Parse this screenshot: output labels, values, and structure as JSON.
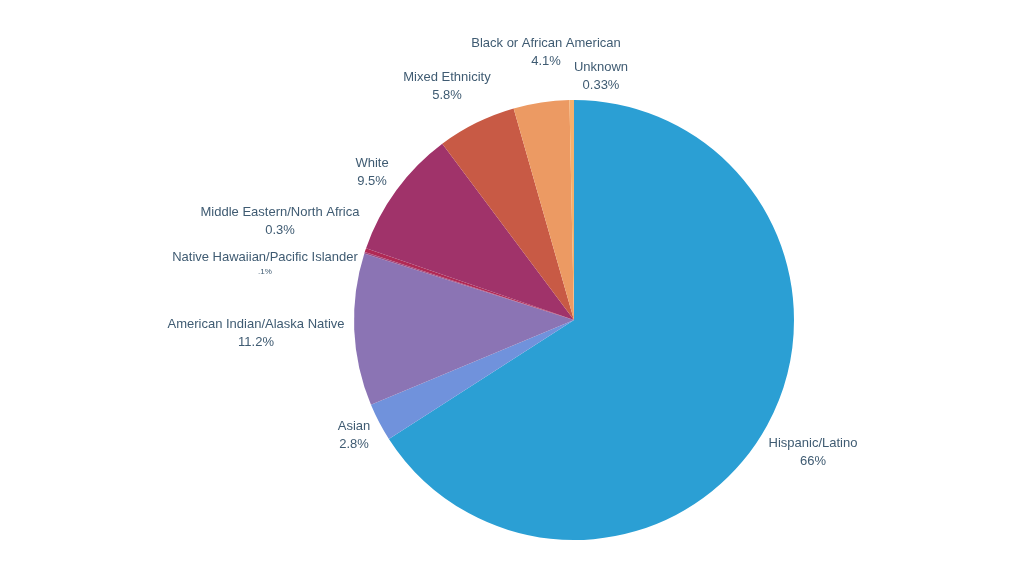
{
  "chart_data": {
    "type": "pie",
    "categories": [
      "Hispanic/Latino",
      "Asian",
      "American Indian/Alaska Native",
      "Native Hawaiian/Pacific Islander",
      "Middle Eastern/North Africa",
      "White",
      "Mixed Ethnicity",
      "Black or African American",
      "Unknown"
    ],
    "values": [
      66,
      2.8,
      11.2,
      0.1,
      0.3,
      9.5,
      5.8,
      4.1,
      0.33
    ],
    "value_labels": [
      "66%",
      "2.8%",
      "11.2%",
      ".1%",
      "0.3%",
      "9.5%",
      "5.8%",
      "4.1%",
      "0.33%"
    ],
    "colors": [
      "#2b9fd4",
      "#7092dc",
      "#8b74b4",
      "#a04a80",
      "#b02a55",
      "#a0336a",
      "#c85a45",
      "#ec9a63",
      "#f5b06b"
    ],
    "data_labels": true
  }
}
